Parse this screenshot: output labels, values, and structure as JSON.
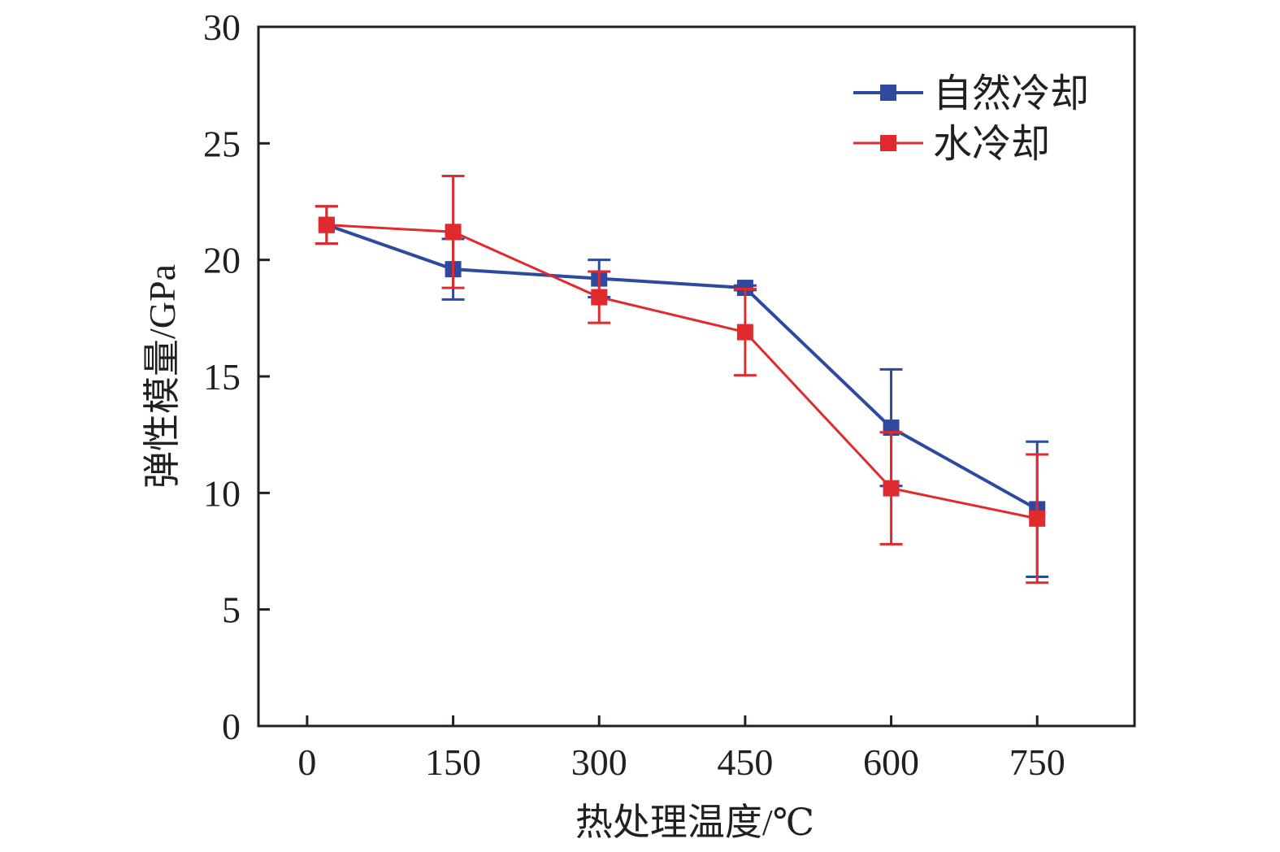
{
  "chart_data": {
    "type": "line",
    "title": "",
    "xlabel": "热处理温度/℃",
    "ylabel": "弹性模量/GPa",
    "xlim": [
      -50,
      850
    ],
    "ylim": [
      0,
      30
    ],
    "x_ticks": [
      0,
      150,
      300,
      450,
      600,
      750
    ],
    "x_tick_labels": [
      "0",
      "150",
      "300",
      "450",
      "600",
      "750"
    ],
    "y_ticks": [
      0,
      5,
      10,
      15,
      20,
      25,
      30
    ],
    "y_tick_labels": [
      "0",
      "5",
      "10",
      "15",
      "20",
      "25",
      "30"
    ],
    "grid": false,
    "legend_position": "top-right",
    "x": [
      20,
      150,
      300,
      450,
      600,
      750
    ],
    "series": [
      {
        "name": "自然冷却",
        "color": "#2e4a9e",
        "marker": "square",
        "values": [
          21.5,
          19.6,
          19.2,
          18.8,
          12.8,
          9.3
        ],
        "error": [
          0.8,
          1.3,
          0.8,
          0.1,
          2.5,
          2.9
        ]
      },
      {
        "name": "水冷却",
        "color": "#e02a2e",
        "marker": "square",
        "values": [
          21.5,
          21.2,
          18.4,
          16.9,
          10.2,
          8.9
        ],
        "error": [
          0.8,
          2.4,
          1.1,
          1.85,
          2.4,
          2.75
        ]
      }
    ]
  }
}
